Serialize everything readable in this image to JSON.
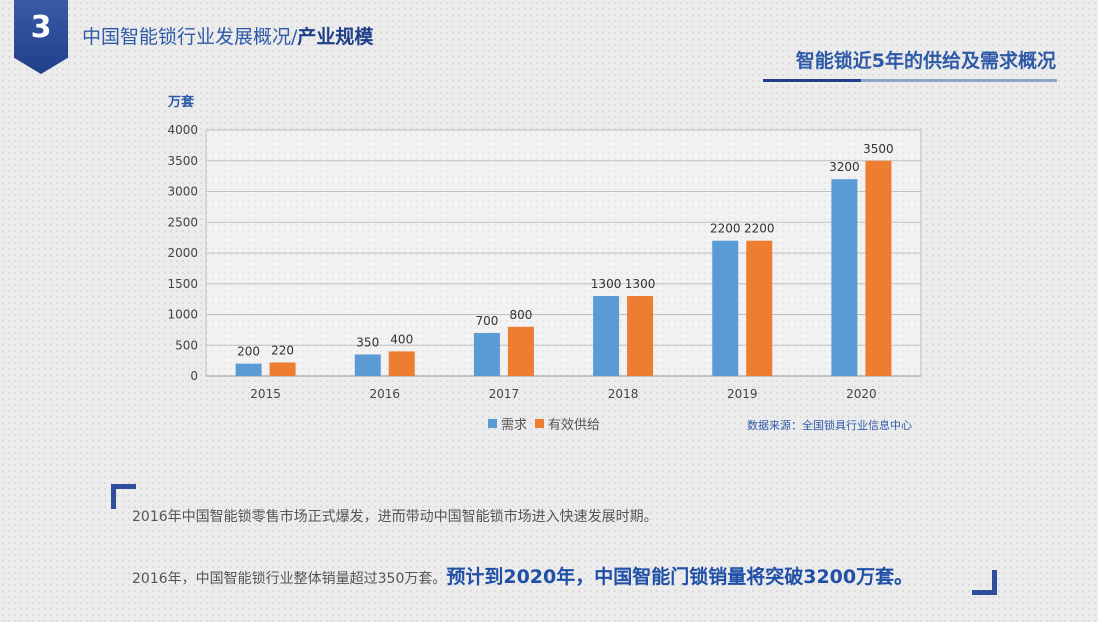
{
  "header": {
    "badge_number": "3",
    "title_regular": "中国智能锁行业发展概况/",
    "title_strong": "产业规模"
  },
  "subtitle": "智能锁近5年的供给及需求概况",
  "chart_data": {
    "type": "bar",
    "title": "",
    "ylabel": "万套",
    "xlabel": "",
    "categories": [
      "2015",
      "2016",
      "2017",
      "2018",
      "2019",
      "2020"
    ],
    "series": [
      {
        "name": "需求",
        "color": "#5b9bd5",
        "values": [
          200,
          350,
          700,
          1300,
          2200,
          3200
        ]
      },
      {
        "name": "有效供给",
        "color": "#ed7d31",
        "values": [
          220,
          400,
          800,
          1300,
          2200,
          3500
        ]
      }
    ],
    "ylim": [
      0,
      4000
    ],
    "yticks": [
      0,
      500,
      1000,
      1500,
      2000,
      2500,
      3000,
      3500,
      4000
    ],
    "grid": true,
    "legend_position": "bottom"
  },
  "legend": {
    "series1": "需求",
    "series2": "有效供给"
  },
  "source": "数据来源：全国锁具行业信息中心",
  "paragraph1": "2016年中国智能锁零售市场正式爆发，进而带动中国智能锁市场进入快速发展时期。",
  "paragraph2_regular": "2016年，中国智能锁行业整体销量超过350万套。",
  "paragraph2_emphasis": "预计到2020年，中国智能门锁销量将突破3200万套。"
}
